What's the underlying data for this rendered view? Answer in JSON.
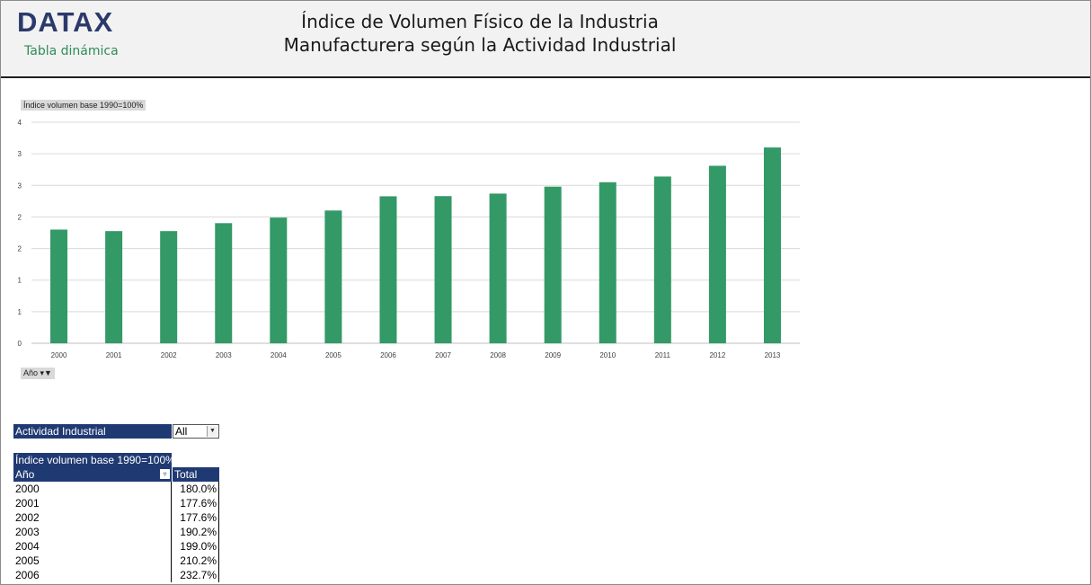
{
  "header": {
    "logo": "DATAX",
    "logo_subtitle": "Tabla dinámica",
    "title_line1": "Índice de Volumen Físico de la Industria",
    "title_line2": "Manufacturera según la Actividad Industrial"
  },
  "chart_labels": {
    "ylabel_pill": "Índice volumen base 1990=100%",
    "xfilter_pill": "Año"
  },
  "chart_data": {
    "type": "bar",
    "ylabel": "Índice volumen base 1990=100%",
    "xlabel": "Año",
    "categories": [
      "2000",
      "2001",
      "2002",
      "2003",
      "2004",
      "2005",
      "2006",
      "2007",
      "2008",
      "2009",
      "2010",
      "2011",
      "2012",
      "2013"
    ],
    "values": [
      1.8,
      1.776,
      1.776,
      1.902,
      1.99,
      2.102,
      2.327,
      2.33,
      2.37,
      2.48,
      2.55,
      2.64,
      2.81,
      3.1
    ],
    "ylim": [
      0,
      3.5
    ],
    "yticks": [
      0,
      0.5,
      1,
      1.5,
      2,
      2.5,
      3,
      3.5
    ],
    "ytick_labels": [
      "0",
      "1",
      "1",
      "2",
      "2",
      "3",
      "3",
      "4"
    ],
    "bar_color": "#339966",
    "grid": true,
    "legend": "none"
  },
  "filter": {
    "label": "Actividad Industrial",
    "value": "All"
  },
  "pivot": {
    "header": "Índice volumen base 1990=100%",
    "col_row": "Año",
    "col_total": "Total",
    "rows": [
      {
        "year": "2000",
        "value": "180.0%"
      },
      {
        "year": "2001",
        "value": "177.6%"
      },
      {
        "year": "2002",
        "value": "177.6%"
      },
      {
        "year": "2003",
        "value": "190.2%"
      },
      {
        "year": "2004",
        "value": "199.0%"
      },
      {
        "year": "2005",
        "value": "210.2%"
      },
      {
        "year": "2006",
        "value": "232.7%"
      }
    ]
  }
}
